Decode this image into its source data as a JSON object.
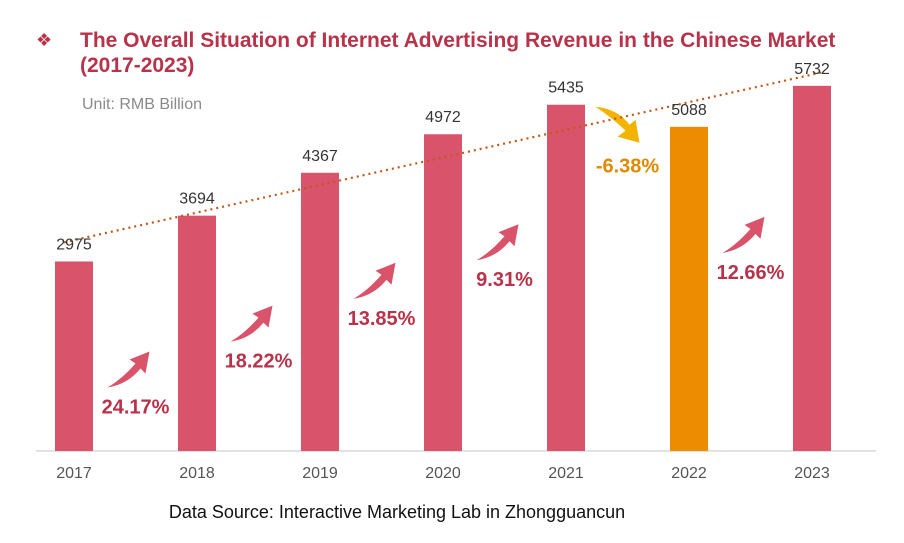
{
  "title": "The Overall Situation of Internet Advertising Revenue in the Chinese Market (2017-2023)",
  "bullet_icon": "diamond-bullet-icon",
  "subtitle": "Unit: RMB Billion",
  "source": "Data Source:  Interactive Marketing Lab in Zhongguancun",
  "colors": {
    "bar": "#d9546b",
    "highlight": "#ee8c00",
    "growth_text": "#b8324a",
    "decline_text": "#e08a00",
    "trend": "#c0581b"
  },
  "chart_data": {
    "type": "bar",
    "categories": [
      "2017",
      "2018",
      "2019",
      "2020",
      "2021",
      "2022",
      "2023"
    ],
    "values": [
      2975,
      3694,
      4367,
      4972,
      5435,
      5088,
      5732
    ],
    "value_labels": [
      "2975",
      "3694",
      "4367",
      "4972",
      "5435",
      "5088",
      "5732"
    ],
    "highlight_category": "2022",
    "growth_rates": [
      "24.17%",
      "18.22%",
      "13.85%",
      "9.31%",
      "-6.38%",
      "12.66%"
    ],
    "trendline": "linear, dotted",
    "ylim": [
      0,
      6200
    ],
    "grid": false,
    "legend": "none"
  }
}
